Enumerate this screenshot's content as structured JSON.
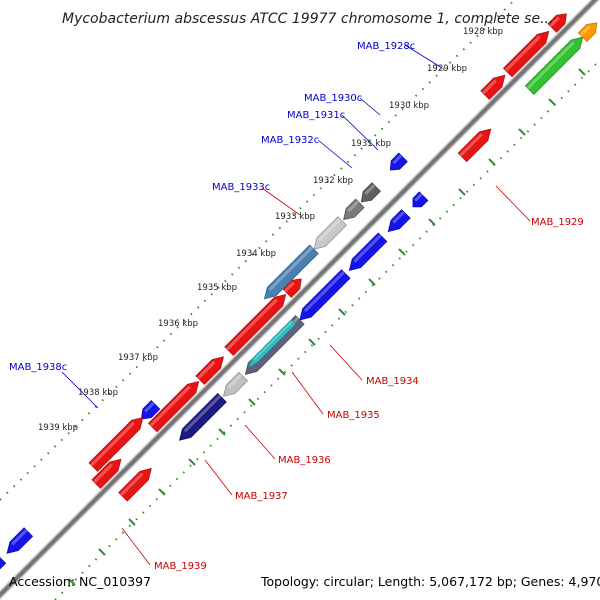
{
  "header": {
    "title": "Mycobacterium abscessus ATCC 19977 chromosome 1, complete se..."
  },
  "footer": {
    "accession": "Accession: NC_010397",
    "summary": "Topology: circular; Length: 5,067,172 bp; Genes: 4,970"
  },
  "ruler_labels": [
    "1928 kbp",
    "1929 kbp",
    "1930 kbp",
    "1931 kbp",
    "1932 kbp",
    "1933 kbp",
    "1934 kbp",
    "1935 kbp",
    "1936 kbp",
    "1937 kbp",
    "1938 kbp",
    "1939 kbp"
  ],
  "gene_labels": {
    "reverse": [
      "MAB_1928c",
      "MAB_1930c",
      "MAB_1931c",
      "MAB_1932c",
      "MAB_1933c",
      "MAB_1938c"
    ],
    "forward": [
      "MAB_1929",
      "MAB_1934",
      "MAB_1935",
      "MAB_1936",
      "MAB_1937",
      "MAB_1939"
    ]
  },
  "colors": {
    "backbone": "#808080",
    "forward_gene": "#e81414",
    "reverse_gene": "#1414e8",
    "rna_gene": "#30c030",
    "other_gene": "#ff9900",
    "dots": "#3a9a3a",
    "label_blue": "#0000cc",
    "label_red": "#cc0000"
  }
}
